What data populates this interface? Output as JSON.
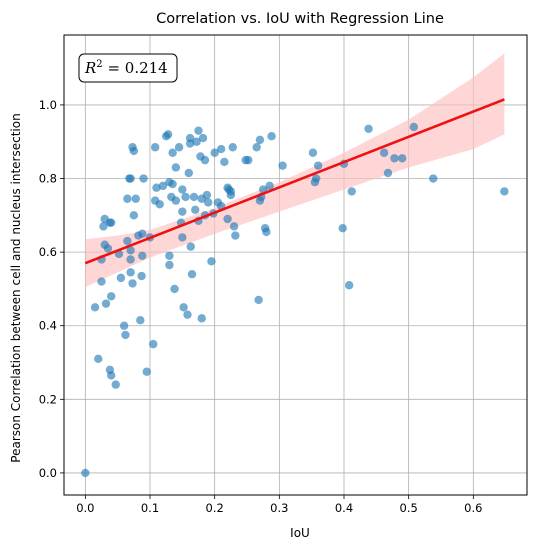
{
  "chart_data": {
    "type": "scatter",
    "title": "Correlation vs. IoU with Regression Line",
    "xlabel": "IoU",
    "ylabel": "Pearson Correlation between cell and nucleus intersection",
    "xlim": [
      -0.033,
      0.683
    ],
    "ylim": [
      -0.06,
      1.19
    ],
    "xticks": [
      0.0,
      0.1,
      0.2,
      0.3,
      0.4,
      0.5,
      0.6
    ],
    "xtick_labels": [
      "0.0",
      "0.1",
      "0.2",
      "0.3",
      "0.4",
      "0.5",
      "0.6"
    ],
    "yticks": [
      0.0,
      0.2,
      0.4,
      0.6,
      0.8,
      1.0
    ],
    "ytick_labels": [
      "0.0",
      "0.2",
      "0.4",
      "0.6",
      "0.8",
      "1.0"
    ],
    "grid": true,
    "annotation": {
      "prefix": "R",
      "sup": "2",
      "text": " = 0.214",
      "location": "top-left"
    },
    "regression": {
      "x": [
        0.0,
        0.648
      ],
      "y": [
        0.57,
        1.015
      ],
      "ci_x": [
        0.0,
        0.05,
        0.1,
        0.2,
        0.3,
        0.4,
        0.5,
        0.6,
        0.648
      ],
      "ci_upper": [
        0.635,
        0.645,
        0.66,
        0.72,
        0.79,
        0.87,
        0.96,
        1.075,
        1.14
      ],
      "ci_lower": [
        0.505,
        0.545,
        0.585,
        0.65,
        0.71,
        0.77,
        0.83,
        0.88,
        0.92
      ],
      "color": "#ee1111",
      "band_color": "#ffc0c0"
    },
    "series": [
      {
        "color": "#1f77b4",
        "points": [
          [
            0.0,
            0.0
          ],
          [
            0.015,
            0.45
          ],
          [
            0.025,
            0.58
          ],
          [
            0.025,
            0.52
          ],
          [
            0.02,
            0.31
          ],
          [
            0.028,
            0.67
          ],
          [
            0.03,
            0.69
          ],
          [
            0.03,
            0.62
          ],
          [
            0.032,
            0.46
          ],
          [
            0.035,
            0.61
          ],
          [
            0.038,
            0.68
          ],
          [
            0.04,
            0.68
          ],
          [
            0.038,
            0.28
          ],
          [
            0.04,
            0.265
          ],
          [
            0.04,
            0.48
          ],
          [
            0.047,
            0.24
          ],
          [
            0.052,
            0.595
          ],
          [
            0.055,
            0.53
          ],
          [
            0.06,
            0.4
          ],
          [
            0.062,
            0.375
          ],
          [
            0.065,
            0.63
          ],
          [
            0.065,
            0.745
          ],
          [
            0.068,
            0.8
          ],
          [
            0.07,
            0.8
          ],
          [
            0.07,
            0.605
          ],
          [
            0.07,
            0.58
          ],
          [
            0.07,
            0.545
          ],
          [
            0.073,
            0.515
          ],
          [
            0.073,
            0.885
          ],
          [
            0.075,
            0.875
          ],
          [
            0.075,
            0.7
          ],
          [
            0.078,
            0.745
          ],
          [
            0.082,
            0.645
          ],
          [
            0.085,
            0.415
          ],
          [
            0.087,
            0.535
          ],
          [
            0.088,
            0.65
          ],
          [
            0.088,
            0.59
          ],
          [
            0.09,
            0.8
          ],
          [
            0.095,
            0.275
          ],
          [
            0.1,
            0.64
          ],
          [
            0.105,
            0.35
          ],
          [
            0.108,
            0.885
          ],
          [
            0.108,
            0.74
          ],
          [
            0.11,
            0.775
          ],
          [
            0.115,
            0.73
          ],
          [
            0.12,
            0.78
          ],
          [
            0.125,
            0.915
          ],
          [
            0.128,
            0.92
          ],
          [
            0.13,
            0.79
          ],
          [
            0.13,
            0.565
          ],
          [
            0.13,
            0.59
          ],
          [
            0.133,
            0.75
          ],
          [
            0.135,
            0.785
          ],
          [
            0.135,
            0.87
          ],
          [
            0.138,
            0.5
          ],
          [
            0.14,
            0.83
          ],
          [
            0.14,
            0.74
          ],
          [
            0.145,
            0.885
          ],
          [
            0.148,
            0.68
          ],
          [
            0.15,
            0.71
          ],
          [
            0.15,
            0.77
          ],
          [
            0.15,
            0.64
          ],
          [
            0.152,
            0.45
          ],
          [
            0.155,
            0.75
          ],
          [
            0.158,
            0.43
          ],
          [
            0.16,
            0.815
          ],
          [
            0.162,
            0.91
          ],
          [
            0.162,
            0.895
          ],
          [
            0.163,
            0.615
          ],
          [
            0.165,
            0.54
          ],
          [
            0.168,
            0.75
          ],
          [
            0.17,
            0.715
          ],
          [
            0.172,
            0.9
          ],
          [
            0.175,
            0.685
          ],
          [
            0.175,
            0.93
          ],
          [
            0.178,
            0.86
          ],
          [
            0.18,
            0.745
          ],
          [
            0.18,
            0.42
          ],
          [
            0.182,
            0.91
          ],
          [
            0.185,
            0.7
          ],
          [
            0.185,
            0.85
          ],
          [
            0.188,
            0.755
          ],
          [
            0.19,
            0.735
          ],
          [
            0.195,
            0.575
          ],
          [
            0.198,
            0.705
          ],
          [
            0.2,
            0.87
          ],
          [
            0.205,
            0.735
          ],
          [
            0.21,
            0.88
          ],
          [
            0.21,
            0.725
          ],
          [
            0.215,
            0.845
          ],
          [
            0.22,
            0.775
          ],
          [
            0.22,
            0.69
          ],
          [
            0.222,
            0.77
          ],
          [
            0.225,
            0.765
          ],
          [
            0.225,
            0.755
          ],
          [
            0.228,
            0.885
          ],
          [
            0.23,
            0.67
          ],
          [
            0.232,
            0.645
          ],
          [
            0.248,
            0.85
          ],
          [
            0.252,
            0.85
          ],
          [
            0.265,
            0.885
          ],
          [
            0.268,
            0.47
          ],
          [
            0.27,
            0.905
          ],
          [
            0.27,
            0.74
          ],
          [
            0.272,
            0.75
          ],
          [
            0.275,
            0.77
          ],
          [
            0.278,
            0.665
          ],
          [
            0.28,
            0.655
          ],
          [
            0.285,
            0.78
          ],
          [
            0.288,
            0.915
          ],
          [
            0.305,
            0.835
          ],
          [
            0.352,
            0.87
          ],
          [
            0.355,
            0.79
          ],
          [
            0.357,
            0.8
          ],
          [
            0.36,
            0.835
          ],
          [
            0.398,
            0.665
          ],
          [
            0.4,
            0.84
          ],
          [
            0.408,
            0.51
          ],
          [
            0.412,
            0.765
          ],
          [
            0.438,
            0.935
          ],
          [
            0.462,
            0.87
          ],
          [
            0.468,
            0.815
          ],
          [
            0.478,
            0.855
          ],
          [
            0.49,
            0.855
          ],
          [
            0.508,
            0.94
          ],
          [
            0.538,
            0.8
          ],
          [
            0.648,
            0.765
          ]
        ]
      }
    ]
  }
}
